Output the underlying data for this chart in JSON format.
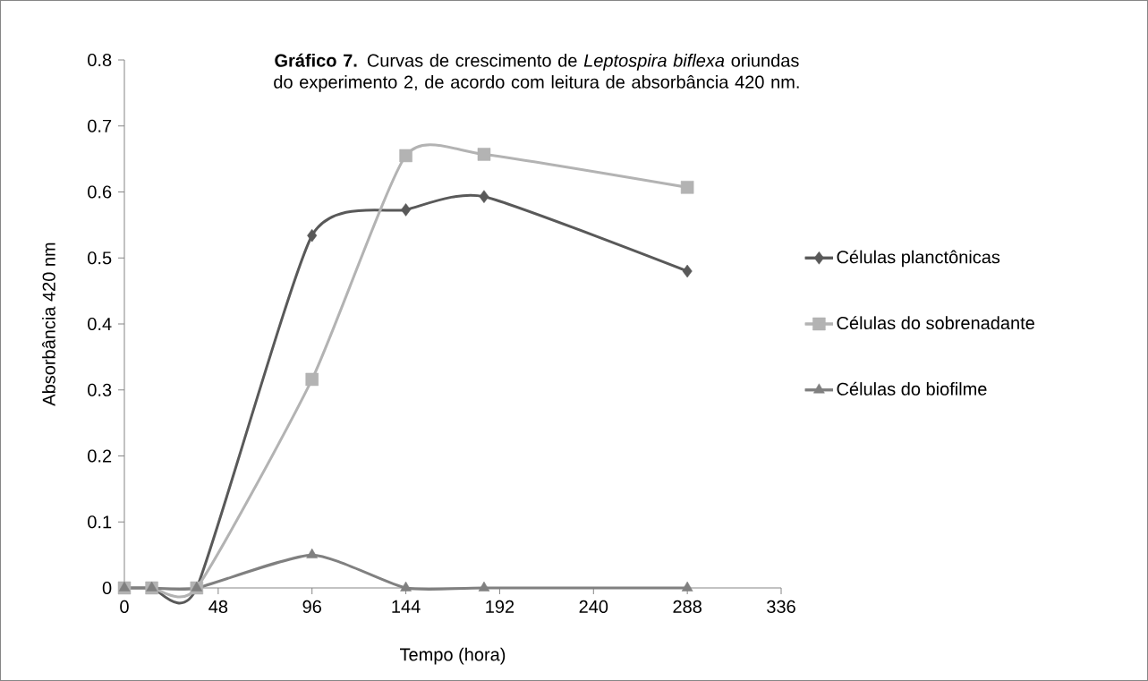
{
  "chart_data": {
    "type": "line",
    "title": "**Gráfico 7.** Curvas de crescimento de *Leptospira biflexa* oriundas do experimento 2, de acordo com leitura de absorbância 420 nm.",
    "xlabel": "Tempo (hora)",
    "ylabel": "Absorbância 420 nm",
    "x": [
      0,
      14,
      37,
      96,
      144,
      184,
      288
    ],
    "series": [
      {
        "name": "Células planctônicas",
        "color": "#595959",
        "marker": "diamond",
        "values": [
          0,
          0,
          0,
          0.534,
          0.573,
          0.593,
          0.48
        ]
      },
      {
        "name": "Células do sobrenadante",
        "color": "#b3b3b3",
        "marker": "square",
        "values": [
          0,
          0,
          0,
          0.316,
          0.655,
          0.657,
          0.607
        ]
      },
      {
        "name": "Células do biofilme",
        "color": "#808080",
        "marker": "triangle",
        "values": [
          0,
          0,
          0,
          0.05,
          0,
          0,
          0
        ]
      }
    ],
    "xlim": [
      0,
      336
    ],
    "xticks": [
      0,
      48,
      96,
      144,
      192,
      240,
      288,
      336
    ],
    "ylim": [
      0,
      0.8
    ],
    "yticks": [
      0,
      0.1,
      0.2,
      0.3,
      0.4,
      0.5,
      0.6,
      0.7,
      0.8
    ],
    "grid": false,
    "legend": "right",
    "line_style": "solid"
  }
}
